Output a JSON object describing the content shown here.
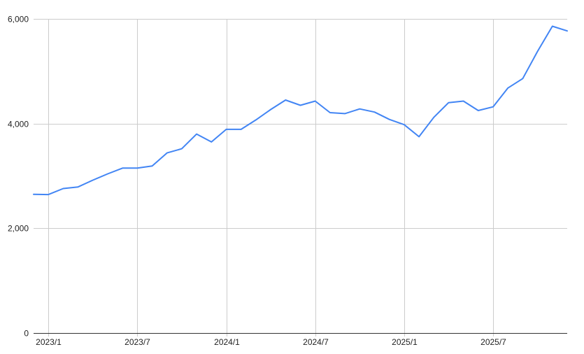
{
  "chart_data": {
    "type": "line",
    "title": "",
    "xlabel": "",
    "ylabel": "",
    "x": [
      "2022/12",
      "2023/1",
      "2023/2",
      "2023/3",
      "2023/4",
      "2023/5",
      "2023/6",
      "2023/7",
      "2023/8",
      "2023/9",
      "2023/10",
      "2023/11",
      "2023/12",
      "2024/1",
      "2024/2",
      "2024/3",
      "2024/4",
      "2024/5",
      "2024/6",
      "2024/7",
      "2024/8",
      "2024/9",
      "2024/10",
      "2024/11",
      "2024/12",
      "2025/1",
      "2025/2",
      "2025/3",
      "2025/4",
      "2025/5",
      "2025/6",
      "2025/7",
      "2025/8",
      "2025/9",
      "2025/10",
      "2025/11",
      "2025/12"
    ],
    "series": [
      {
        "values": [
          2650,
          2645,
          2760,
          2790,
          2920,
          3040,
          3150,
          3150,
          3190,
          3440,
          3520,
          3800,
          3650,
          3890,
          3890,
          4070,
          4270,
          4450,
          4350,
          4430,
          4210,
          4190,
          4280,
          4220,
          4080,
          3980,
          3750,
          4120,
          4400,
          4430,
          4250,
          4320,
          4680,
          4860,
          5380,
          5860,
          5770
        ]
      }
    ],
    "ylim": [
      0,
      6000
    ],
    "y_ticks": [
      "0",
      "2,000",
      "4,000",
      "6,000"
    ],
    "x_ticks": [
      "2023/1",
      "2023/7",
      "2024/1",
      "2024/7",
      "2025/1",
      "2025/7"
    ],
    "grid": true,
    "legend": "none",
    "line_color": "#4285f4",
    "grid_color": "#cccccc"
  }
}
